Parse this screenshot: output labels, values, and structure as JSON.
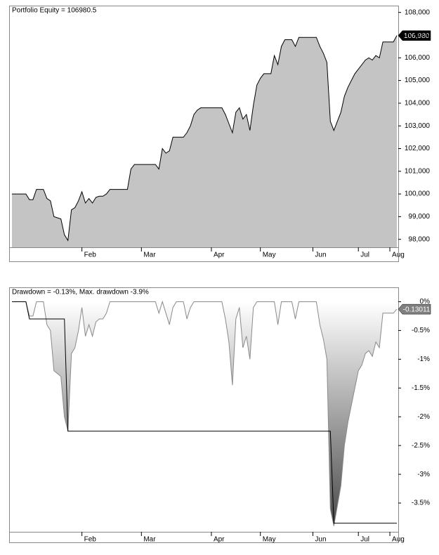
{
  "chart_data": [
    {
      "type": "area",
      "title": "Portfolio Equity = 106980.5",
      "xlim": [
        0,
        110
      ],
      "xticks": [
        {
          "value": 20,
          "label": "Feb"
        },
        {
          "value": 37,
          "label": "Mar"
        },
        {
          "value": 57,
          "label": "Apr"
        },
        {
          "value": 71,
          "label": "May"
        },
        {
          "value": 86,
          "label": "Jun"
        },
        {
          "value": 99,
          "label": "Jul"
        },
        {
          "value": 108,
          "label": "Aug"
        }
      ],
      "ylim": [
        97650,
        108300
      ],
      "yticks": [
        {
          "value": 98000,
          "label": "98,000"
        },
        {
          "value": 99000,
          "label": "99,000"
        },
        {
          "value": 100000,
          "label": "100,000"
        },
        {
          "value": 101000,
          "label": "101,000"
        },
        {
          "value": 102000,
          "label": "102,000"
        },
        {
          "value": 103000,
          "label": "103,000"
        },
        {
          "value": 104000,
          "label": "104,000"
        },
        {
          "value": 105000,
          "label": "105,000"
        },
        {
          "value": 106000,
          "label": "106,000"
        },
        {
          "value": 107000,
          "label": "107,000"
        },
        {
          "value": 108000,
          "label": "108,000"
        }
      ],
      "grid": false,
      "series": [
        {
          "color": "#000000",
          "fill": "#c4c4c4",
          "label_color": "#000000",
          "values": [
            100000,
            100000,
            100000,
            100000,
            100000,
            99750,
            99750,
            100200,
            100200,
            100200,
            99800,
            99700,
            99000,
            98950,
            98900,
            98200,
            97950,
            99300,
            99400,
            99700,
            100100,
            99600,
            99800,
            99600,
            99850,
            99900,
            99900,
            100000,
            100200,
            100200,
            100200,
            100200,
            100200,
            100200,
            101100,
            101300,
            101300,
            101300,
            101300,
            101300,
            101300,
            101300,
            101100,
            102000,
            101800,
            101900,
            102500,
            102500,
            102500,
            102500,
            102700,
            103000,
            103500,
            103700,
            103800,
            103800,
            103800,
            103800,
            103800,
            103800,
            103800,
            103500,
            103100,
            102700,
            103600,
            103800,
            103300,
            103500,
            102800,
            103900,
            104800,
            105100,
            105300,
            105300,
            105300,
            106100,
            105700,
            106500,
            106800,
            106800,
            106800,
            106500,
            106900,
            106900,
            106900,
            106900,
            106900,
            106900,
            106500,
            106200,
            105800,
            103200,
            102800,
            103200,
            103600,
            104300,
            104700,
            105000,
            105300,
            105500,
            105700,
            105900,
            106000,
            105900,
            106100,
            106000,
            106700,
            106700,
            106700,
            106700,
            106980.5
          ],
          "value_labels": [
            null,
            null,
            null,
            null,
            null,
            null,
            null,
            null,
            null,
            null,
            null,
            null,
            null,
            null,
            null,
            null,
            null,
            null,
            null,
            null,
            null,
            null,
            null,
            null,
            null,
            null,
            null,
            null,
            null,
            null,
            null,
            null,
            null,
            null,
            null,
            null,
            null,
            null,
            null,
            null,
            null,
            null,
            null,
            null,
            null,
            null,
            null,
            null,
            null,
            null,
            null,
            null,
            null,
            null,
            null,
            null,
            null,
            null,
            null,
            null,
            null,
            null,
            null,
            null,
            null,
            null,
            null,
            null,
            null,
            null,
            null,
            null,
            null,
            null,
            null,
            null,
            null,
            null,
            null,
            null,
            null,
            null,
            null,
            null,
            null,
            null,
            null,
            null,
            null,
            null,
            null,
            null,
            null,
            null,
            null,
            null,
            null,
            null,
            null,
            null,
            null,
            null,
            null,
            null,
            null,
            null,
            null,
            null,
            null,
            null,
            "106,980"
          ]
        }
      ]
    },
    {
      "type": "area",
      "title": "Drawdown = -0.13%, Max. drawdown -3.9%",
      "xlim": [
        0,
        110
      ],
      "xticks": [
        {
          "value": 20,
          "label": "Feb"
        },
        {
          "value": 37,
          "label": "Mar"
        },
        {
          "value": 57,
          "label": "Apr"
        },
        {
          "value": 71,
          "label": "May"
        },
        {
          "value": 86,
          "label": "Jun"
        },
        {
          "value": 99,
          "label": "Jul"
        },
        {
          "value": 108,
          "label": "Aug"
        }
      ],
      "ylim": [
        -4,
        0.25
      ],
      "yticks": [
        {
          "value": 0,
          "label": "0%"
        },
        {
          "value": -0.5,
          "label": "-0.5%"
        },
        {
          "value": -1,
          "label": "-1%"
        },
        {
          "value": -1.5,
          "label": "-1.5%"
        },
        {
          "value": -2,
          "label": "-2%"
        },
        {
          "value": -2.5,
          "label": "-2.5%"
        },
        {
          "value": -3,
          "label": "-3%"
        },
        {
          "value": -3.5,
          "label": "-3.5%"
        }
      ],
      "grid": false,
      "series": [
        {
          "color": "#8a8a8a",
          "fill_gradient": [
            "#ffffff",
            "#4a4a4a"
          ],
          "label_color": "#808080",
          "values": [
            0,
            0,
            0,
            0,
            0,
            -0.25,
            -0.25,
            0,
            0,
            0,
            -0.4,
            -0.5,
            -1.2,
            -1.25,
            -1.3,
            -2.0,
            -2.25,
            -0.9,
            -0.8,
            -0.5,
            -0.1,
            -0.6,
            -0.4,
            -0.6,
            -0.35,
            -0.3,
            -0.3,
            -0.2,
            0,
            0,
            0,
            0,
            0,
            0,
            0,
            0,
            0,
            0,
            0,
            0,
            0,
            0,
            -0.2,
            0,
            -0.2,
            -0.4,
            -0.1,
            0,
            0,
            0,
            -0.3,
            -0.1,
            0,
            0,
            0,
            0,
            0,
            0,
            0,
            0,
            0,
            -0.3,
            -0.7,
            -1.45,
            -0.3,
            -0.1,
            -0.8,
            -0.6,
            -1.0,
            -0.1,
            0,
            0,
            0,
            0,
            0,
            0,
            -0.4,
            0,
            0,
            0,
            0,
            -0.3,
            0,
            0,
            0,
            0,
            0,
            0,
            -0.4,
            -0.65,
            -1.0,
            -3.6,
            -3.9,
            -3.55,
            -3.2,
            -2.5,
            -2.1,
            -1.8,
            -1.5,
            -1.2,
            -1.1,
            -0.9,
            -0.85,
            -0.95,
            -0.7,
            -0.8,
            -0.2,
            -0.2,
            -0.2,
            -0.2,
            -0.13011
          ]
        },
        {
          "color": "#000000",
          "values": [
            0,
            0,
            0,
            0,
            0,
            -0.3,
            -0.3,
            -0.3,
            -0.3,
            -0.3,
            -0.3,
            -0.3,
            -0.3,
            -0.3,
            -0.3,
            -0.3,
            -2.25,
            -2.25,
            -2.25,
            -2.25,
            -2.25,
            -2.25,
            -2.25,
            -2.25,
            -2.25,
            -2.25,
            -2.25,
            -2.25,
            -2.25,
            -2.25,
            -2.25,
            -2.25,
            -2.25,
            -2.25,
            -2.25,
            -2.25,
            -2.25,
            -2.25,
            -2.25,
            -2.25,
            -2.25,
            -2.25,
            -2.25,
            -2.25,
            -2.25,
            -2.25,
            -2.25,
            -2.25,
            -2.25,
            -2.25,
            -2.25,
            -2.25,
            -2.25,
            -2.25,
            -2.25,
            -2.25,
            -2.25,
            -2.25,
            -2.25,
            -2.25,
            -2.25,
            -2.25,
            -2.25,
            -2.25,
            -2.25,
            -2.25,
            -2.25,
            -2.25,
            -2.25,
            -2.25,
            -2.25,
            -2.25,
            -2.25,
            -2.25,
            -2.25,
            -2.25,
            -2.25,
            -2.25,
            -2.25,
            -2.25,
            -2.25,
            -2.25,
            -2.25,
            -2.25,
            -2.25,
            -2.25,
            -2.25,
            -2.25,
            -2.25,
            -2.25,
            -2.25,
            -2.25,
            -3.85,
            -3.85,
            -3.85,
            -3.85,
            -3.85,
            -3.85,
            -3.85,
            -3.85,
            -3.85,
            -3.85,
            -3.85,
            -3.85,
            -3.85,
            -3.85,
            -3.85,
            -3.85,
            -3.85,
            -3.85,
            -3.85
          ]
        }
      ]
    }
  ]
}
